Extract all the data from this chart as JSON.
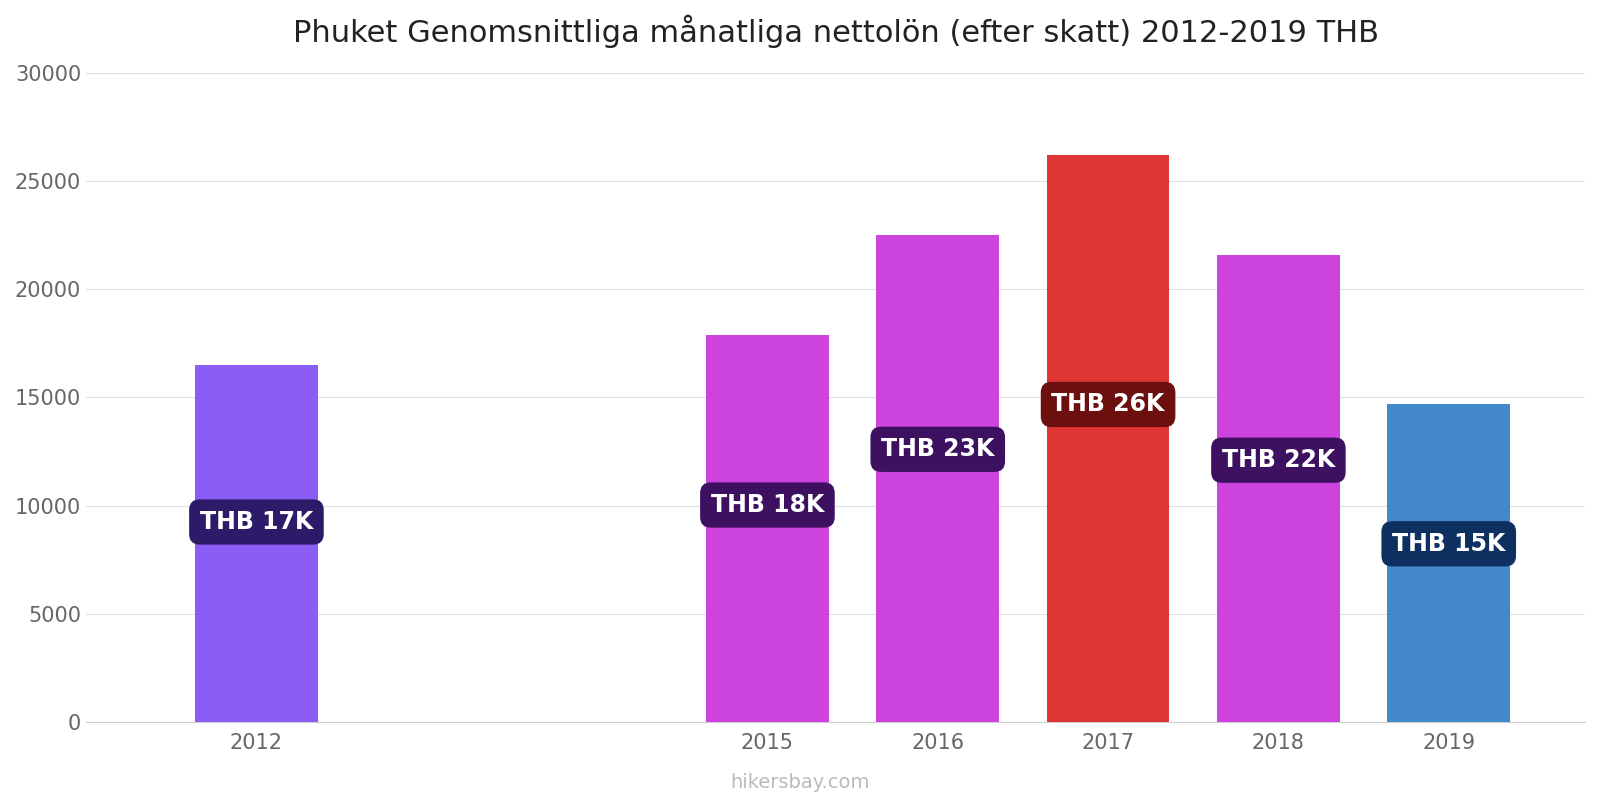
{
  "title": "Phuket Genomsnittliga månatliga nettolön (efter skatt) 2012-2019 THB",
  "years": [
    2012,
    2015,
    2016,
    2017,
    2018,
    2019
  ],
  "values": [
    16500,
    17900,
    22500,
    26200,
    21600,
    14700
  ],
  "labels": [
    "THB 17K",
    "THB 18K",
    "THB 23K",
    "THB 26K",
    "THB 22K",
    "THB 15K"
  ],
  "bar_colors": [
    "#8b5cf6",
    "#cc44dd",
    "#cc44dd",
    "#e03535",
    "#cc44dd",
    "#4488cc"
  ],
  "label_bg_colors": [
    "#2d1b69",
    "#3d1060",
    "#3d1060",
    "#6b0f0f",
    "#3d1060",
    "#0d3060"
  ],
  "ylim": [
    0,
    30000
  ],
  "yticks": [
    0,
    5000,
    10000,
    15000,
    20000,
    25000,
    30000
  ],
  "footer": "hikersbay.com",
  "title_fontsize": 22,
  "label_fontsize": 17,
  "tick_fontsize": 15,
  "footer_fontsize": 14,
  "background_color": "#ffffff"
}
